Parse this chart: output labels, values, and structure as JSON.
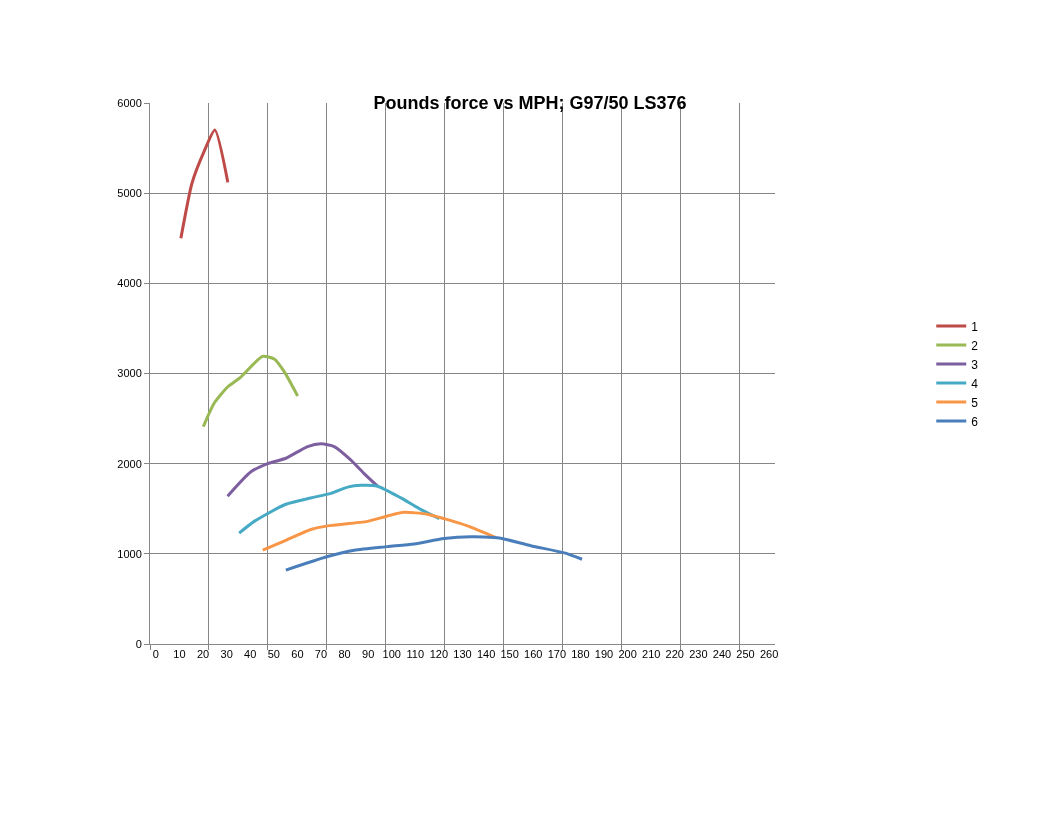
{
  "chart_data": {
    "type": "line",
    "title": "Pounds force vs MPH; G97/50 LS376",
    "xlim": [
      -2.5,
      262.5
    ],
    "xticks": [
      0,
      10,
      20,
      30,
      40,
      50,
      60,
      70,
      80,
      90,
      100,
      110,
      120,
      130,
      140,
      150,
      160,
      170,
      180,
      190,
      200,
      210,
      220,
      230,
      240,
      250,
      260,
      {
        "value": -2.5,
        "label": null
      },
      {
        "value": 22.5,
        "label": null
      },
      {
        "value": 47.5,
        "label": null
      },
      {
        "value": 72.5,
        "label": null
      },
      {
        "value": 97.5,
        "label": null
      },
      {
        "value": 122.5,
        "label": null
      },
      {
        "value": 147.5,
        "label": null
      },
      {
        "value": 172.5,
        "label": null
      },
      {
        "value": 197.5,
        "label": null
      },
      {
        "value": 222.5,
        "label": null
      },
      {
        "value": 247.5,
        "label": null
      }
    ],
    "ylim": [
      0,
      6000
    ],
    "yticks": [
      0,
      1000,
      2000,
      3000,
      4000,
      5000,
      6000
    ],
    "grid": true,
    "legend": "right",
    "marker": "none",
    "line_style": "solid",
    "series": [
      {
        "name": "1",
        "color": "#be4b48",
        "x": [
          10.6,
          15.3,
          20.4,
          25,
          30.5
        ],
        "values": [
          4500,
          5110,
          5460,
          5700,
          5120
        ]
      },
      {
        "name": "2",
        "color": "#98b954",
        "x": [
          20.1,
          24.7,
          30.4,
          36,
          45.2,
          50.2,
          54.4,
          60.1
        ],
        "values": [
          2410,
          2670,
          2850,
          2960,
          3190,
          3160,
          3020,
          2750
        ]
      },
      {
        "name": "3",
        "color": "#7d5fa0",
        "x": [
          30.4,
          40.3,
          47.4,
          55.1,
          64.3,
          70,
          75.6,
          82.7,
          88.3,
          94
        ],
        "values": [
          1640,
          1910,
          2000,
          2060,
          2190,
          2220,
          2190,
          2040,
          1890,
          1750
        ]
      },
      {
        "name": "4",
        "color": "#46aac5",
        "x": [
          35.3,
          41.7,
          55.1,
          65.7,
          74.2,
          81.3,
          86.9,
          94,
          103.9,
          112.4,
          120.2
        ],
        "values": [
          1230,
          1360,
          1550,
          1620,
          1670,
          1740,
          1760,
          1750,
          1620,
          1490,
          1390
        ]
      },
      {
        "name": "5",
        "color": "#f79646",
        "x": [
          45.3,
          55.1,
          65.7,
          72.8,
          89.7,
          98.2,
          105.2,
          115.1,
          122.2,
          132.1,
          144.2
        ],
        "values": [
          1040,
          1150,
          1270,
          1310,
          1360,
          1420,
          1460,
          1440,
          1390,
          1310,
          1180
        ]
      },
      {
        "name": "6",
        "color": "#4a7ebb",
        "x": [
          55.1,
          72.8,
          84.1,
          98.2,
          109.5,
          122.2,
          133.6,
          143.4,
          147.7,
          159,
          173.2,
          180.7
        ],
        "values": [
          820,
          970,
          1040,
          1080,
          1110,
          1170,
          1190,
          1180,
          1165,
          1090,
          1010,
          940
        ]
      }
    ]
  }
}
